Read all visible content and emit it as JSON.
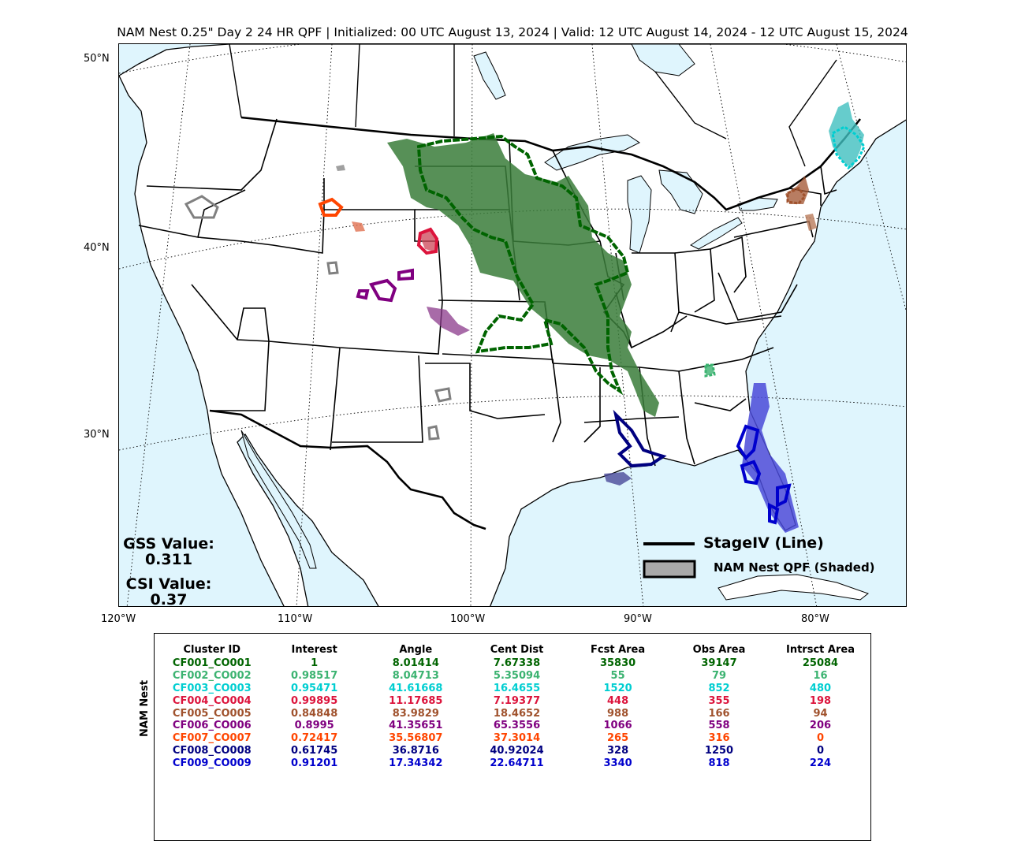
{
  "title": "NAM Nest 0.25\" Day 2 24 HR QPF | Initialized: 00 UTC August 13, 2024 | Valid: 12 UTC August 14, 2024 - 12 UTC August 15, 2024",
  "lat_labels": [
    "50°N",
    "40°N",
    "30°N"
  ],
  "lon_labels": [
    "120°W",
    "110°W",
    "100°W",
    "90°W",
    "80°W"
  ],
  "gss": {
    "label": "GSS Value:",
    "value": "0.311"
  },
  "csi": {
    "label": "CSI Value:",
    "value": "0.37"
  },
  "legend": {
    "line_label": "StageIV (Line)",
    "shaded_label": "NAM Nest QPF (Shaded)"
  },
  "table": {
    "ylabel": "NAM Nest",
    "headers": [
      "Cluster ID",
      "Interest",
      "Angle",
      "Cent Dist",
      "Fcst Area",
      "Obs Area",
      "Intrsct Area"
    ],
    "rows": [
      {
        "color": "#006400",
        "cells": [
          "CF001_CO001",
          "1",
          "8.01414",
          "7.67338",
          "35830",
          "39147",
          "25084"
        ]
      },
      {
        "color": "#3cb371",
        "cells": [
          "CF002_CO002",
          "0.98517",
          "8.04713",
          "5.35094",
          "55",
          "79",
          "16"
        ]
      },
      {
        "color": "#00ced1",
        "cells": [
          "CF003_CO003",
          "0.95471",
          "41.61668",
          "16.4655",
          "1520",
          "852",
          "480"
        ]
      },
      {
        "color": "#dc143c",
        "cells": [
          "CF004_CO004",
          "0.99895",
          "11.17685",
          "7.19377",
          "448",
          "355",
          "198"
        ]
      },
      {
        "color": "#a0522d",
        "cells": [
          "CF005_CO005",
          "0.84848",
          "83.9829",
          "18.4652",
          "988",
          "166",
          "94"
        ]
      },
      {
        "color": "#800080",
        "cells": [
          "CF006_CO006",
          "0.8995",
          "41.35651",
          "65.3556",
          "1066",
          "558",
          "206"
        ]
      },
      {
        "color": "#ff4500",
        "cells": [
          "CF007_CO007",
          "0.72417",
          "35.56807",
          "37.3014",
          "265",
          "316",
          "0"
        ]
      },
      {
        "color": "#000080",
        "cells": [
          "CF008_CO008",
          "0.61745",
          "36.8716",
          "40.92024",
          "328",
          "1250",
          "0"
        ]
      },
      {
        "color": "#0000cd",
        "cells": [
          "CF009_CO009",
          "0.91201",
          "17.34342",
          "22.64711",
          "3340",
          "818",
          "224"
        ]
      }
    ]
  }
}
